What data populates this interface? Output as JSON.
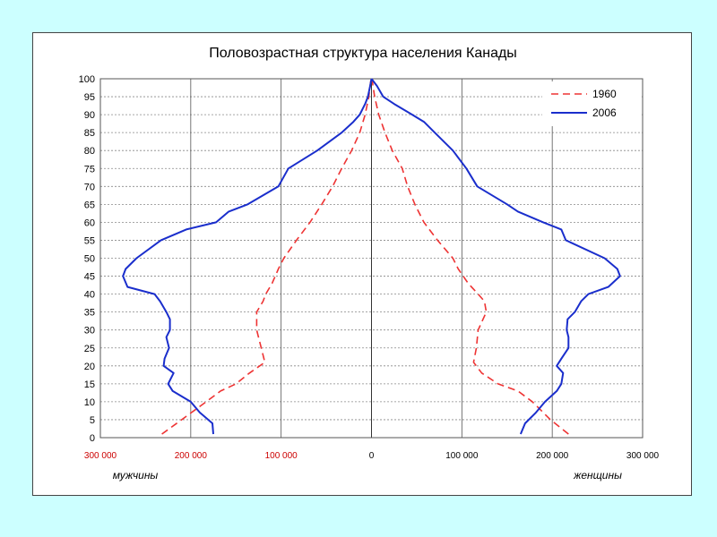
{
  "chart_data": {
    "type": "line",
    "title": "Половозрастная структура населения Канады",
    "orientation": "population-pyramid",
    "xlim": [
      -300000,
      300000
    ],
    "ylim": [
      0,
      100
    ],
    "grid": true,
    "legend_position": "top-right",
    "x_tick_labels": [
      "300 000",
      "200 000",
      "100 000",
      "0",
      "100 000",
      "200 000",
      "300 000"
    ],
    "y_ticks": [
      0,
      5,
      10,
      15,
      20,
      25,
      30,
      35,
      40,
      45,
      50,
      55,
      60,
      65,
      70,
      75,
      80,
      85,
      90,
      95,
      100
    ],
    "left_side_label": "мужчины",
    "right_side_label": "женщины",
    "series": [
      {
        "name": "1960",
        "color": "#ee3333",
        "dash": "dashed",
        "age": [
          1,
          5,
          10,
          13,
          15,
          18,
          21,
          25,
          30,
          35,
          38,
          40,
          43,
          47,
          50,
          55,
          60,
          65,
          70,
          75,
          80,
          85,
          90,
          95,
          100
        ],
        "men": [
          232000,
          210000,
          183000,
          167000,
          150000,
          135000,
          118000,
          122000,
          127000,
          127000,
          120000,
          117000,
          110000,
          103000,
          97000,
          83000,
          68000,
          55000,
          43000,
          33000,
          22000,
          13000,
          7000,
          3000,
          500
        ],
        "women": [
          218000,
          198000,
          178000,
          162000,
          140000,
          122000,
          113000,
          116000,
          118000,
          127000,
          125000,
          118000,
          107000,
          96000,
          90000,
          73000,
          58000,
          48000,
          40000,
          34000,
          23000,
          15000,
          8000,
          3500,
          500
        ]
      },
      {
        "name": "2006",
        "color": "#1a2ecc",
        "dash": "solid",
        "age": [
          1,
          4,
          7,
          10,
          13,
          15,
          18,
          20,
          22,
          25,
          28,
          30,
          33,
          35,
          38,
          40,
          42,
          45,
          47,
          50,
          55,
          58,
          60,
          63,
          65,
          70,
          75,
          80,
          85,
          88,
          90,
          93,
          95,
          98,
          100
        ],
        "men": [
          175000,
          176000,
          190000,
          200000,
          220000,
          225000,
          219000,
          230000,
          229000,
          224000,
          227000,
          223000,
          223000,
          227000,
          234000,
          240000,
          270000,
          275000,
          272000,
          260000,
          233000,
          205000,
          172000,
          158000,
          137000,
          103000,
          92000,
          60000,
          33000,
          20000,
          13000,
          7000,
          4000,
          1500,
          0
        ],
        "women": [
          165000,
          170000,
          182000,
          192000,
          205000,
          210000,
          212000,
          205000,
          210000,
          218000,
          218000,
          216000,
          217000,
          225000,
          232000,
          240000,
          262000,
          275000,
          272000,
          258000,
          215000,
          210000,
          190000,
          162000,
          150000,
          117000,
          105000,
          90000,
          70000,
          58000,
          45000,
          25000,
          13000,
          6000,
          0
        ]
      }
    ]
  }
}
